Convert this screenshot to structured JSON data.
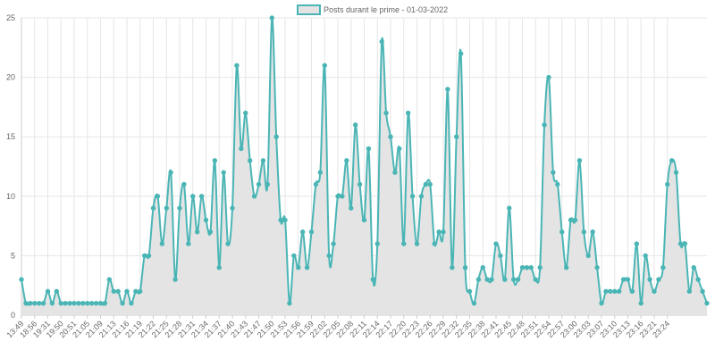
{
  "colors": {
    "line": "#4bb5b5",
    "fill": "#e4e4e4",
    "grid": "#e6e6e6",
    "axis": "#cccccc",
    "text": "#666666"
  },
  "chart_data": {
    "type": "area",
    "legend": {
      "label": "Posts durant le prime - 01-03-2022",
      "position": "top"
    },
    "ylim": [
      0,
      25
    ],
    "y_ticks": [
      0,
      5,
      10,
      15,
      20,
      25
    ],
    "grid": true,
    "x_tick_labels": [
      "13:49",
      "18:56",
      "19:31",
      "19:50",
      "20:51",
      "21:05",
      "21:09",
      "21:13",
      "21:16",
      "21:19",
      "21:22",
      "21:25",
      "21:28",
      "21:31",
      "21:34",
      "21:37",
      "21:40",
      "21:43",
      "21:47",
      "21:50",
      "21:53",
      "21:56",
      "21:59",
      "22:02",
      "22:05",
      "22:08",
      "22:11",
      "22:14",
      "22:17",
      "22:20",
      "22:23",
      "22:26",
      "22:29",
      "22:32",
      "22:35",
      "22:38",
      "22:41",
      "22:45",
      "22:48",
      "22:51",
      "22:54",
      "22:57",
      "23:00",
      "23:03",
      "23:07",
      "23:10",
      "23:13",
      "23:16",
      "23:21",
      "23:24"
    ],
    "series": [
      {
        "name": "Posts durant le prime - 01-03-2022",
        "values": [
          3,
          1,
          1,
          1,
          1,
          1,
          2,
          1,
          2,
          1,
          1,
          1,
          1,
          1,
          1,
          1,
          1,
          1,
          1,
          1,
          3,
          2,
          2,
          1,
          2,
          1,
          2,
          2,
          5,
          5,
          9,
          10,
          6,
          9,
          12,
          3,
          9,
          11,
          6,
          10,
          7,
          10,
          8,
          7,
          13,
          4,
          12,
          6,
          9,
          21,
          14,
          17,
          13,
          10,
          11,
          13,
          11,
          25,
          15,
          8,
          8,
          1,
          5,
          4,
          7,
          4,
          7,
          11,
          12,
          21,
          5,
          6,
          10,
          10,
          13,
          9,
          16,
          11,
          8,
          14,
          3,
          6,
          23,
          17,
          15,
          12,
          14,
          6,
          17,
          10,
          6,
          10,
          11,
          11,
          6,
          7,
          7,
          19,
          4,
          15,
          22,
          4,
          2,
          1,
          3,
          4,
          3,
          3,
          6,
          5,
          3,
          9,
          3,
          3,
          4,
          4,
          4,
          3,
          4,
          16,
          20,
          12,
          11,
          7,
          4,
          8,
          8,
          13,
          7,
          5,
          7,
          4,
          1,
          2,
          2,
          2,
          2,
          3,
          3,
          2,
          6,
          1,
          5,
          3,
          2,
          3,
          4,
          11,
          13,
          12,
          6,
          6,
          2,
          4,
          3,
          2,
          1
        ]
      }
    ]
  }
}
